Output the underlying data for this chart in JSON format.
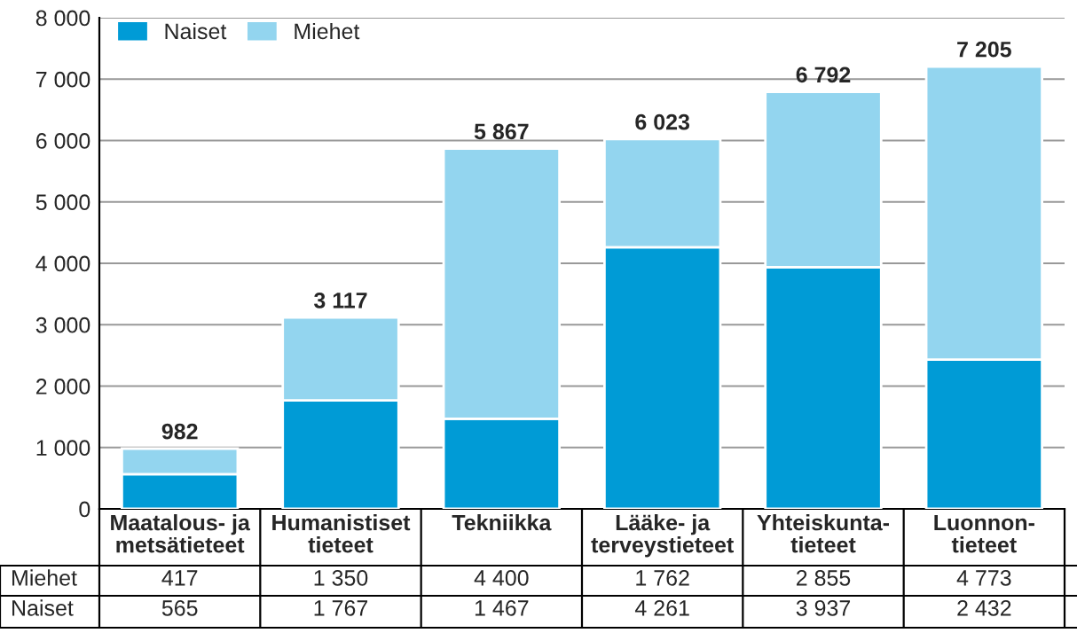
{
  "chart_data": {
    "type": "bar",
    "stacked": true,
    "categories": [
      "Maatalous- ja\nmetsätieteet",
      "Humanistiset\ntieteet",
      "Tekniikka",
      "Lääke- ja\nterveystieteet",
      "Yhteiskunta-\ntieteet",
      "Luonnon-\ntieteet"
    ],
    "series": [
      {
        "name": "Naiset",
        "color": "#009bd6",
        "values": [
          565,
          1767,
          1467,
          4261,
          3937,
          2432
        ],
        "value_labels": [
          "565",
          "1 767",
          "1 467",
          "4 261",
          "3 937",
          "2 432"
        ]
      },
      {
        "name": "Miehet",
        "color": "#93d5ef",
        "values": [
          417,
          1350,
          4400,
          1762,
          2855,
          4773
        ],
        "value_labels": [
          "417",
          "1 350",
          "4 400",
          "1 762",
          "2 855",
          "4 773"
        ]
      }
    ],
    "totals": [
      "982",
      "3 117",
      "5 867",
      "6 023",
      "6 792",
      "7 205"
    ],
    "ylim": [
      0,
      8000
    ],
    "yticks": [
      0,
      {
        "value": 1000,
        "label": "1 000"
      },
      {
        "value": 2000,
        "label": "2 000"
      },
      {
        "value": 3000,
        "label": "3 000"
      },
      {
        "value": 4000,
        "label": "4 000"
      },
      {
        "value": 5000,
        "label": "5 000"
      },
      {
        "value": 6000,
        "label": "6 000"
      },
      {
        "value": 7000,
        "label": "7 000"
      },
      {
        "value": 8000,
        "label": "8 000"
      }
    ],
    "grid": "y",
    "legend": "top left"
  }
}
